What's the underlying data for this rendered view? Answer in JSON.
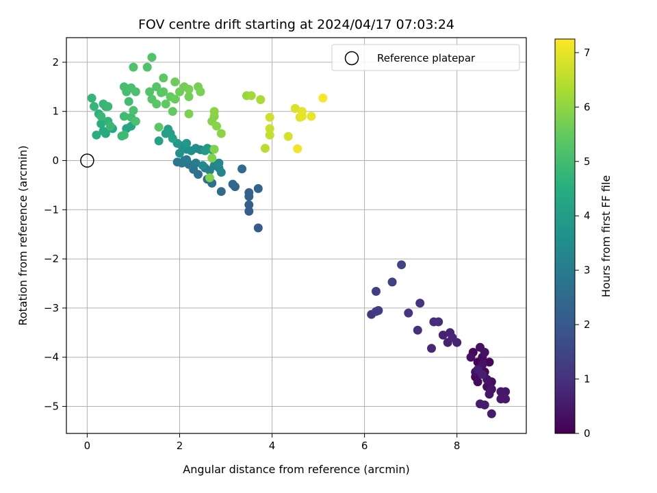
{
  "chart_data": {
    "type": "scatter",
    "title": "FOV centre drift starting at 2024/04/17 07:03:24",
    "xlabel": "Angular distance from reference (arcmin)",
    "ylabel": "Rotation from reference (arcmin)",
    "xlim": [
      -0.45,
      9.5
    ],
    "ylim": [
      -5.55,
      2.5
    ],
    "xticks": [
      0,
      2,
      4,
      6,
      8
    ],
    "xtick_labels": [
      "0",
      "2",
      "4",
      "6",
      "8"
    ],
    "yticks": [
      2,
      1,
      0,
      -1,
      -2,
      -3,
      -4,
      -5
    ],
    "ytick_labels": [
      "2",
      "1",
      "0",
      "−1",
      "−2",
      "−3",
      "−4",
      "−5"
    ],
    "grid": true,
    "legend": {
      "position": "top-right",
      "entries": [
        "Reference platepar"
      ]
    },
    "reference_point": {
      "x": 0,
      "y": 0,
      "label": "Reference platepar"
    },
    "colorbar": {
      "label": "Hours from first FF file",
      "range": [
        0,
        7.25
      ],
      "ticks": [
        0,
        1,
        2,
        3,
        4,
        5,
        6,
        7
      ],
      "tick_labels": [
        "0",
        "1",
        "2",
        "3",
        "4",
        "5",
        "6",
        "7"
      ],
      "colormap": "viridis"
    },
    "points": [
      [
        8.45,
        -4.1,
        0.05
      ],
      [
        8.5,
        -4.2,
        0.08
      ],
      [
        8.6,
        -4.3,
        0.1
      ],
      [
        8.4,
        -4.4,
        0.12
      ],
      [
        8.7,
        -4.1,
        0.15
      ],
      [
        8.35,
        -3.9,
        0.18
      ],
      [
        8.55,
        -4.0,
        0.2
      ],
      [
        8.45,
        -4.5,
        0.22
      ],
      [
        8.65,
        -4.6,
        0.25
      ],
      [
        8.75,
        -4.5,
        0.28
      ],
      [
        8.4,
        -4.3,
        0.3
      ],
      [
        8.5,
        -3.8,
        0.32
      ],
      [
        8.6,
        -3.9,
        0.34
      ],
      [
        8.3,
        -4.0,
        0.36
      ],
      [
        8.55,
        -4.15,
        0.38
      ],
      [
        8.65,
        -4.45,
        0.4
      ],
      [
        8.75,
        -4.65,
        0.42
      ],
      [
        8.7,
        -4.75,
        0.44
      ],
      [
        8.95,
        -4.7,
        0.46
      ],
      [
        9.05,
        -4.7,
        0.48
      ],
      [
        8.95,
        -4.85,
        0.5
      ],
      [
        9.05,
        -4.85,
        0.52
      ],
      [
        8.5,
        -4.95,
        0.54
      ],
      [
        8.6,
        -4.97,
        0.56
      ],
      [
        8.75,
        -5.15,
        0.58
      ],
      [
        8.45,
        -4.25,
        0.6
      ],
      [
        8.55,
        -4.35,
        0.62
      ],
      [
        7.8,
        -3.7,
        0.65
      ],
      [
        8.0,
        -3.7,
        0.68
      ],
      [
        7.7,
        -3.55,
        0.7
      ],
      [
        7.85,
        -3.5,
        0.72
      ],
      [
        7.9,
        -3.6,
        0.75
      ],
      [
        7.45,
        -3.82,
        0.8
      ],
      [
        7.5,
        -3.28,
        0.9
      ],
      [
        7.6,
        -3.28,
        0.95
      ],
      [
        7.15,
        -3.45,
        1.0
      ],
      [
        7.2,
        -2.9,
        1.05
      ],
      [
        6.95,
        -3.1,
        1.1
      ],
      [
        6.15,
        -3.13,
        1.2
      ],
      [
        6.3,
        -3.05,
        1.25
      ],
      [
        6.25,
        -3.07,
        1.3
      ],
      [
        6.25,
        -2.66,
        1.35
      ],
      [
        6.6,
        -2.47,
        1.4
      ],
      [
        6.8,
        -2.12,
        1.45
      ],
      [
        3.7,
        -1.37,
        2.1
      ],
      [
        3.5,
        -1.03,
        2.15
      ],
      [
        3.5,
        -0.9,
        2.2
      ],
      [
        3.5,
        -0.73,
        2.25
      ],
      [
        3.5,
        -0.65,
        2.3
      ],
      [
        3.7,
        -0.57,
        2.35
      ],
      [
        3.2,
        -0.53,
        2.4
      ],
      [
        3.15,
        -0.48,
        2.45
      ],
      [
        2.9,
        -0.63,
        2.5
      ],
      [
        3.35,
        -0.17,
        2.55
      ],
      [
        2.7,
        -0.46,
        2.6
      ],
      [
        2.6,
        -0.38,
        2.65
      ],
      [
        2.4,
        -0.28,
        2.7
      ],
      [
        2.3,
        -0.18,
        2.75
      ],
      [
        2.2,
        -0.08,
        2.8
      ],
      [
        2.1,
        0.0,
        2.85
      ],
      [
        1.95,
        -0.03,
        2.9
      ],
      [
        2.05,
        -0.05,
        2.95
      ],
      [
        2.15,
        0.02,
        3.0
      ],
      [
        2.35,
        -0.05,
        3.05
      ],
      [
        2.55,
        -0.15,
        3.1
      ],
      [
        2.65,
        -0.2,
        3.15
      ],
      [
        2.75,
        -0.1,
        3.2
      ],
      [
        2.85,
        -0.15,
        3.25
      ],
      [
        2.9,
        -0.24,
        3.3
      ],
      [
        2.85,
        -0.05,
        3.35
      ],
      [
        2.5,
        -0.1,
        3.4
      ],
      [
        2.45,
        0.22,
        3.45
      ],
      [
        2.35,
        0.25,
        3.5
      ],
      [
        2.25,
        0.2,
        3.55
      ],
      [
        2.15,
        0.23,
        3.6
      ],
      [
        2.05,
        0.3,
        3.65
      ],
      [
        2.0,
        0.15,
        3.7
      ],
      [
        2.6,
        0.25,
        3.75
      ],
      [
        2.15,
        0.35,
        3.8
      ],
      [
        1.95,
        0.35,
        3.85
      ],
      [
        2.55,
        0.2,
        3.9
      ],
      [
        2.7,
        0.22,
        3.95
      ],
      [
        1.8,
        0.55,
        4.0
      ],
      [
        1.7,
        0.55,
        4.05
      ],
      [
        1.75,
        0.64,
        4.1
      ],
      [
        1.85,
        0.45,
        4.15
      ],
      [
        1.55,
        0.4,
        4.2
      ],
      [
        0.85,
        0.65,
        4.25
      ],
      [
        0.95,
        0.7,
        4.3
      ],
      [
        0.55,
        0.65,
        4.35
      ],
      [
        0.4,
        0.55,
        4.4
      ],
      [
        0.35,
        0.6,
        4.45
      ],
      [
        0.3,
        0.75,
        4.5
      ],
      [
        0.2,
        0.52,
        4.55
      ],
      [
        0.25,
        0.95,
        4.6
      ],
      [
        0.4,
        1.1,
        4.65
      ],
      [
        0.45,
        0.8,
        4.7
      ],
      [
        0.15,
        1.1,
        4.75
      ],
      [
        0.1,
        1.27,
        4.78
      ],
      [
        0.35,
        1.15,
        4.8
      ],
      [
        0.45,
        1.1,
        4.82
      ],
      [
        0.3,
        0.9,
        4.85
      ],
      [
        0.5,
        0.7,
        4.88
      ],
      [
        0.75,
        0.5,
        4.9
      ],
      [
        0.8,
        0.52,
        4.92
      ],
      [
        0.8,
        0.9,
        4.95
      ],
      [
        0.95,
        0.88,
        4.98
      ],
      [
        0.9,
        1.2,
        5.0
      ],
      [
        0.85,
        1.4,
        5.02
      ],
      [
        0.8,
        1.5,
        5.05
      ],
      [
        0.95,
        1.48,
        5.08
      ],
      [
        1.05,
        1.4,
        5.1
      ],
      [
        1.0,
        1.02,
        5.12
      ],
      [
        1.05,
        0.8,
        5.15
      ],
      [
        1.0,
        1.9,
        5.18
      ],
      [
        1.3,
        1.9,
        5.2
      ],
      [
        1.4,
        2.1,
        5.22
      ],
      [
        1.35,
        1.4,
        5.25
      ],
      [
        1.5,
        1.5,
        5.28
      ],
      [
        1.6,
        1.38,
        5.3
      ],
      [
        1.4,
        1.25,
        5.32
      ],
      [
        1.5,
        1.15,
        5.35
      ],
      [
        1.55,
        0.68,
        5.38
      ],
      [
        1.65,
        1.4,
        5.4
      ],
      [
        1.65,
        1.68,
        5.42
      ],
      [
        1.7,
        1.15,
        5.45
      ],
      [
        1.8,
        1.3,
        5.48
      ],
      [
        1.85,
        1.0,
        5.5
      ],
      [
        1.9,
        1.25,
        5.55
      ],
      [
        1.9,
        1.6,
        5.6
      ],
      [
        2.0,
        1.4,
        5.62
      ],
      [
        2.1,
        1.5,
        5.65
      ],
      [
        2.2,
        1.3,
        5.68
      ],
      [
        2.2,
        1.45,
        5.7
      ],
      [
        2.4,
        1.5,
        5.72
      ],
      [
        2.45,
        1.4,
        5.75
      ],
      [
        2.2,
        0.95,
        5.78
      ],
      [
        2.65,
        -0.35,
        5.8
      ],
      [
        2.7,
        0.05,
        5.82
      ],
      [
        2.75,
        0.23,
        5.85
      ],
      [
        2.7,
        0.8,
        5.88
      ],
      [
        2.75,
        0.9,
        5.9
      ],
      [
        2.8,
        0.7,
        5.92
      ],
      [
        2.9,
        0.55,
        5.95
      ],
      [
        2.75,
        1.0,
        5.98
      ],
      [
        3.45,
        1.32,
        6.1
      ],
      [
        3.55,
        1.32,
        6.2
      ],
      [
        3.75,
        1.24,
        6.3
      ],
      [
        3.85,
        0.25,
        6.5
      ],
      [
        3.95,
        0.52,
        6.6
      ],
      [
        3.95,
        0.65,
        6.65
      ],
      [
        3.95,
        0.88,
        6.7
      ],
      [
        4.35,
        0.49,
        6.8
      ],
      [
        4.5,
        1.06,
        6.85
      ],
      [
        4.6,
        0.88,
        6.9
      ],
      [
        4.65,
        1.0,
        6.95
      ],
      [
        4.65,
        0.9,
        7.0
      ],
      [
        4.85,
        0.9,
        7.05
      ],
      [
        4.55,
        0.24,
        7.1
      ],
      [
        5.1,
        1.27,
        7.2
      ]
    ]
  }
}
